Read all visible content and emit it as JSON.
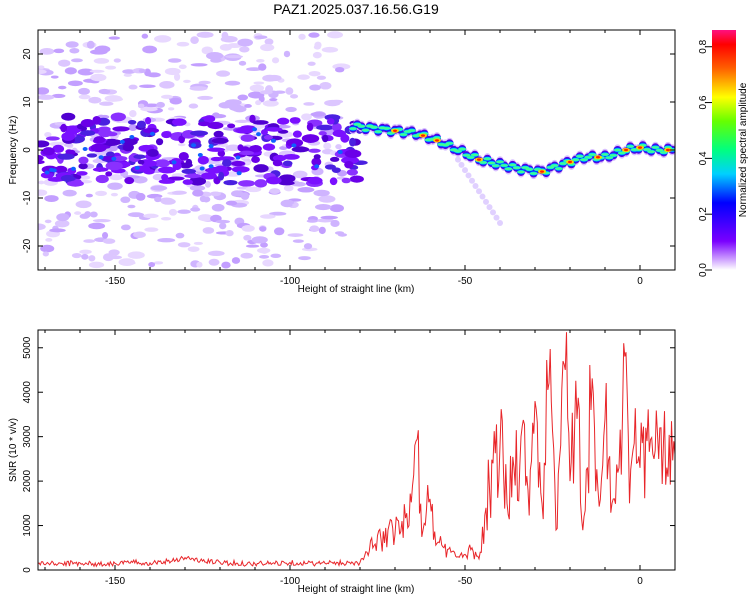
{
  "chart_data": [
    {
      "type": "heatmap",
      "title": "PAZ1.2025.037.16.56.G19",
      "xlabel": "Height of straight line (km)",
      "ylabel": "Frequency (Hz)",
      "xlim": [
        -172,
        10
      ],
      "ylim": [
        -25,
        25
      ],
      "x_ticks": [
        "-150",
        "-100",
        "-50",
        "0"
      ],
      "y_ticks": [
        "20",
        "10",
        "0",
        "-10",
        "-20"
      ],
      "colorbar": {
        "label": "Normalized spectral amplitude",
        "range": [
          0,
          0.86
        ],
        "ticks": [
          "0.0",
          "0.2",
          "0.4",
          "0.6",
          "0.8"
        ]
      },
      "signal_track": {
        "x": [
          -82,
          -76,
          -70,
          -64,
          -58,
          -52,
          -46,
          -40,
          -34,
          -28,
          -22,
          -16,
          -10,
          -4,
          0,
          4,
          10
        ],
        "frequency": [
          5,
          4.5,
          4,
          3.5,
          2,
          0,
          -2,
          -3,
          -4,
          -4.5,
          -3,
          -1.5,
          -1.5,
          0,
          0.5,
          0,
          0
        ]
      }
    },
    {
      "type": "line",
      "xlabel": "Height of straight line (km)",
      "ylabel": "SNR (10 * v/v)",
      "xlim": [
        -172,
        10
      ],
      "ylim": [
        0,
        5400
      ],
      "x_ticks": [
        "-150",
        "-100",
        "-50",
        "0"
      ],
      "y_ticks": [
        "0",
        "1000",
        "2000",
        "3000",
        "4000",
        "5000"
      ],
      "series": [
        {
          "color": "#e8262a",
          "x": [
            -172,
            -165,
            -160,
            -155,
            -150,
            -145,
            -140,
            -135,
            -130,
            -125,
            -120,
            -115,
            -110,
            -105,
            -100,
            -95,
            -90,
            -85,
            -80,
            -78,
            -76,
            -74,
            -72,
            -70,
            -68,
            -66,
            -64,
            -62,
            -60,
            -58,
            -56,
            -54,
            -52,
            -50,
            -48,
            -46,
            -44,
            -42,
            -40,
            -38,
            -36,
            -34,
            -32,
            -30,
            -28,
            -26,
            -24,
            -22,
            -21,
            -20,
            -18,
            -16,
            -14,
            -12,
            -10,
            -8,
            -6,
            -4,
            -3,
            -2,
            0,
            2,
            4,
            6,
            8,
            10
          ],
          "values": [
            150,
            140,
            160,
            130,
            150,
            170,
            160,
            200,
            280,
            200,
            170,
            150,
            140,
            150,
            170,
            150,
            150,
            160,
            170,
            400,
            550,
            700,
            900,
            800,
            1100,
            1000,
            2900,
            900,
            1600,
            600,
            500,
            400,
            300,
            350,
            500,
            250,
            1400,
            2400,
            2800,
            1500,
            2300,
            3000,
            1800,
            3800,
            1500,
            4200,
            900,
            4700,
            5350,
            2000,
            3400,
            1200,
            3600,
            1800,
            3400,
            1500,
            2300,
            4900,
            1500,
            2700,
            2300,
            2900,
            2500,
            3200,
            2100,
            2600
          ]
        }
      ]
    }
  ]
}
